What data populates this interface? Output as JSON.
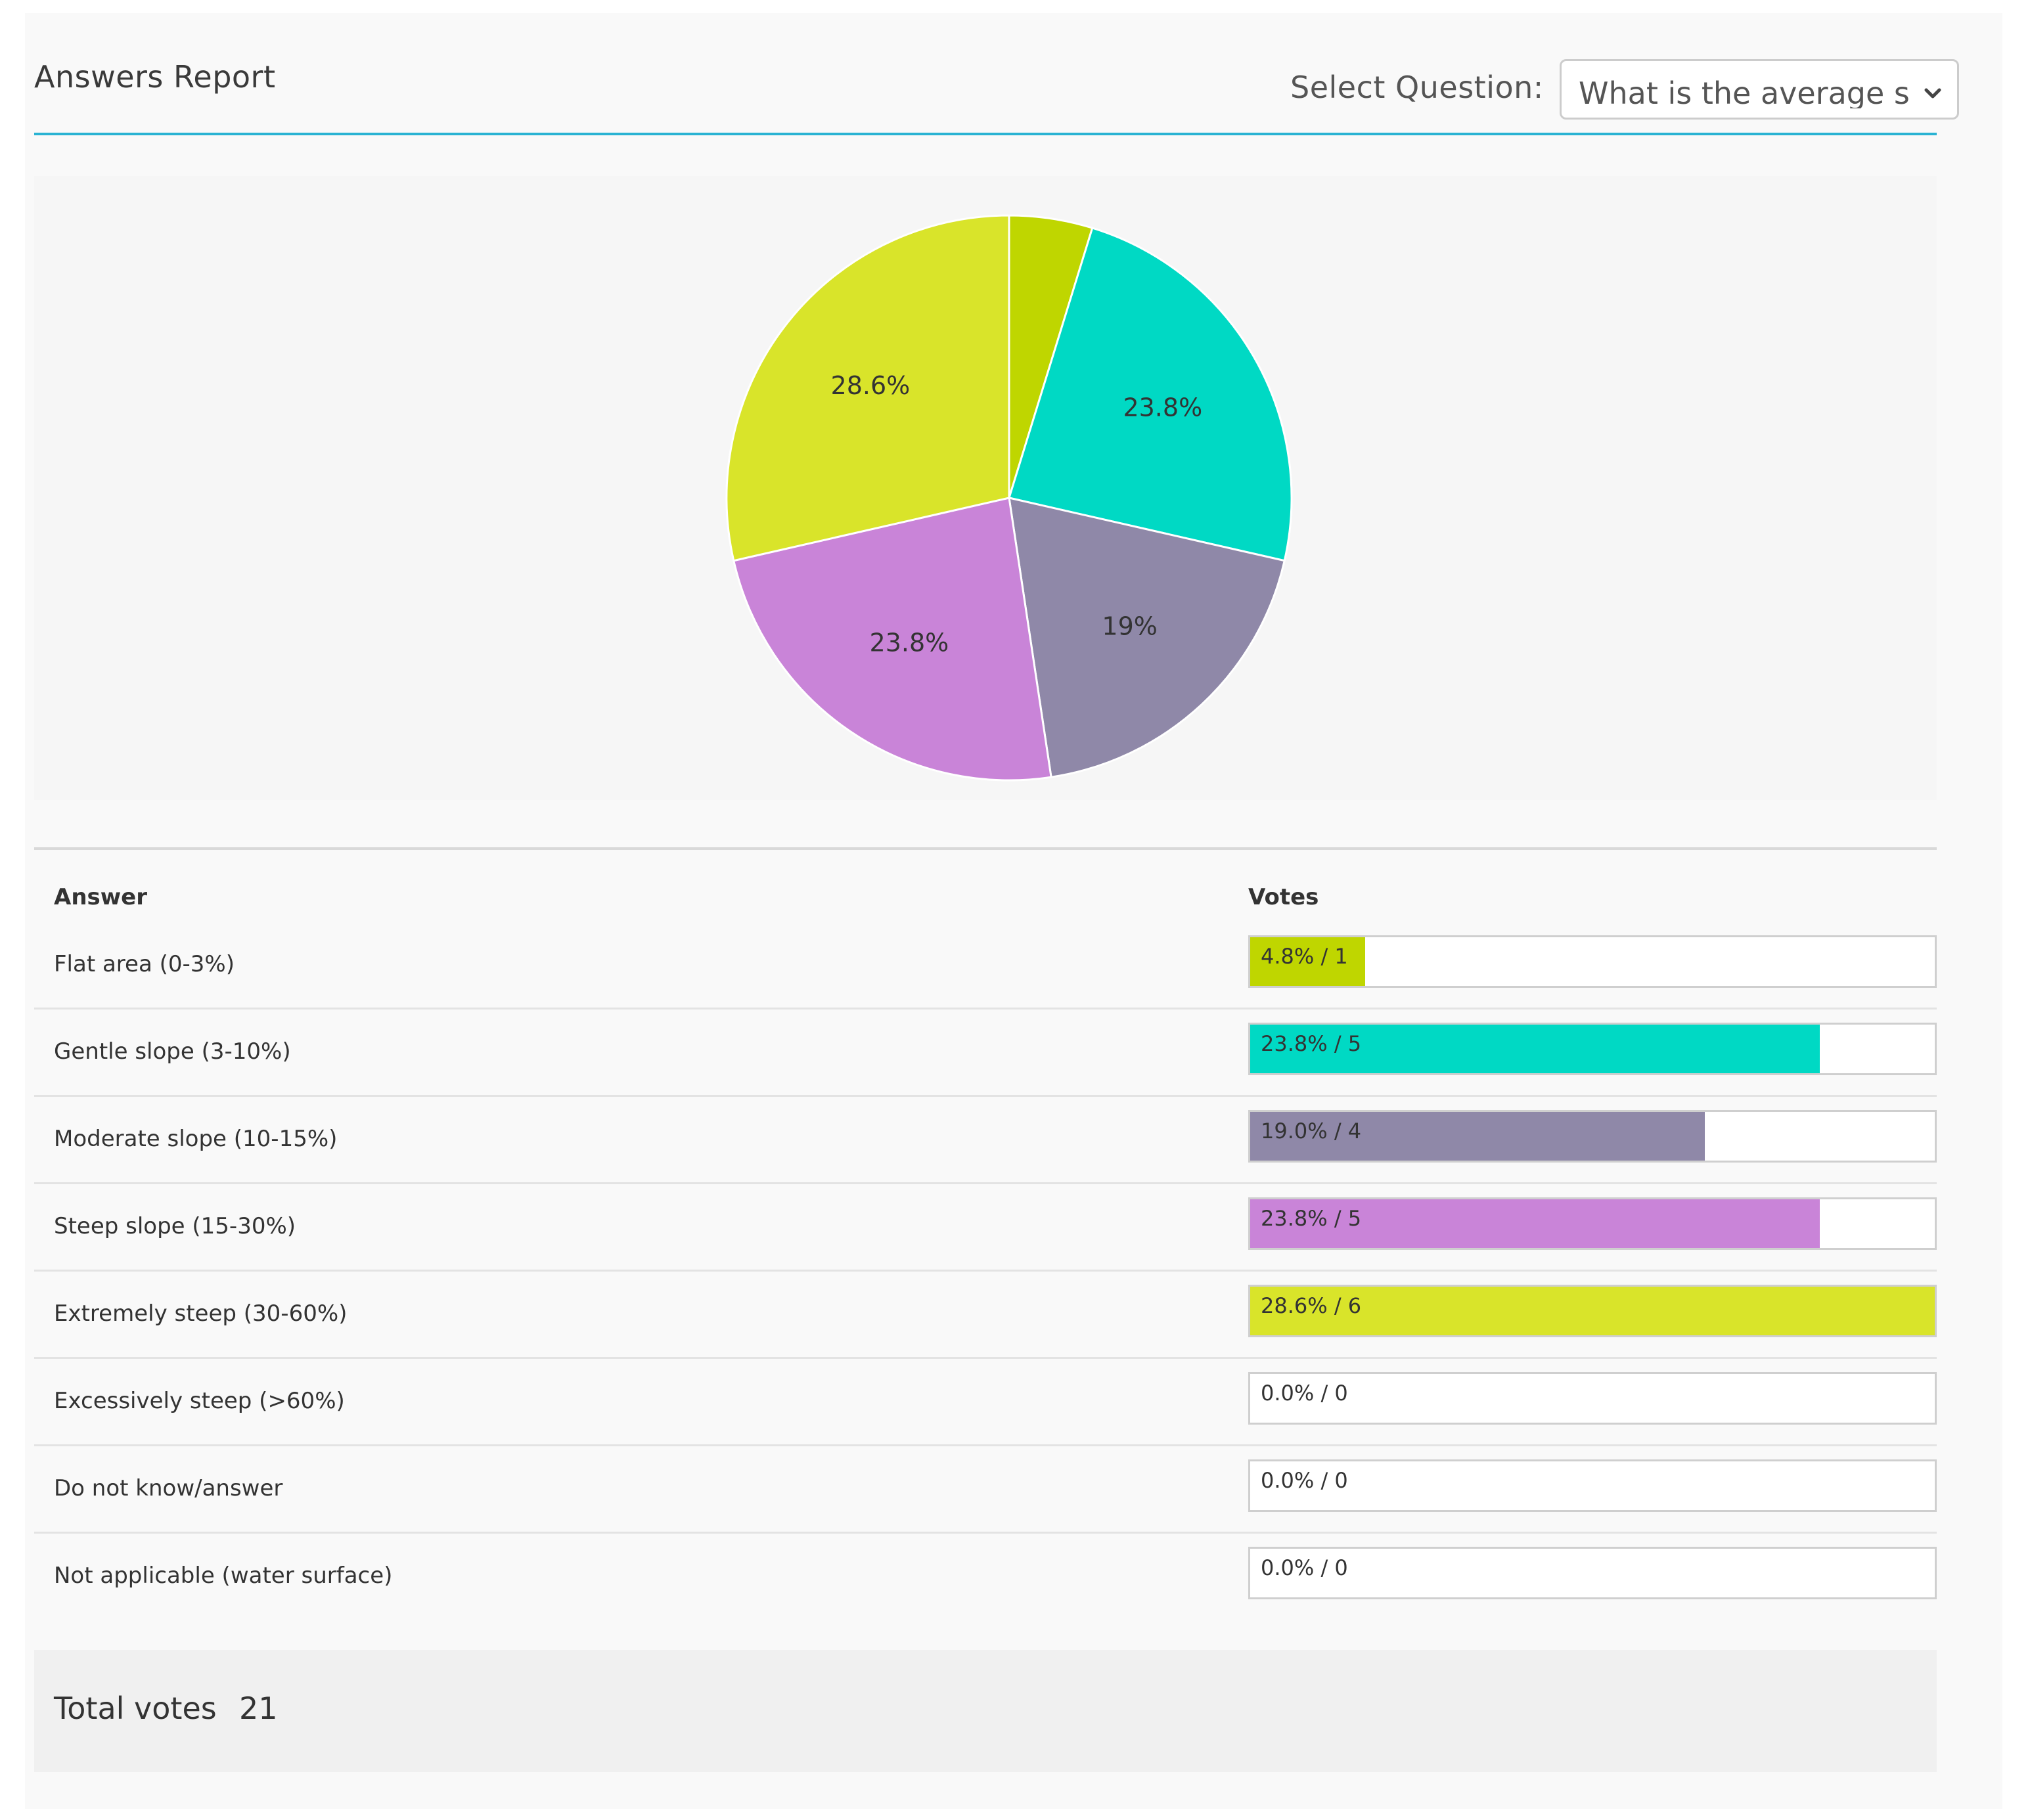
{
  "header": {
    "title": "Answers Report",
    "select_label": "Select Question:",
    "selected_question": "What is the average slǿ"
  },
  "table": {
    "col_answer": "Answer",
    "col_votes": "Votes",
    "rows": [
      {
        "label": "Flat area (0-3%)",
        "percent": 4.8,
        "votes": 1,
        "bar_text": "4.8% / 1",
        "color": "#bfd600"
      },
      {
        "label": "Gentle slope (3-10%)",
        "percent": 23.8,
        "votes": 5,
        "bar_text": "23.8% / 5",
        "color": "#00d9c4"
      },
      {
        "label": "Moderate slope (10-15%)",
        "percent": 19.0,
        "votes": 4,
        "bar_text": "19.0% / 4",
        "color": "#8f88a8"
      },
      {
        "label": "Steep slope (15-30%)",
        "percent": 23.8,
        "votes": 5,
        "bar_text": "23.8% / 5",
        "color": "#c984d8"
      },
      {
        "label": "Extremely steep (30-60%)",
        "percent": 28.6,
        "votes": 6,
        "bar_text": "28.6% / 6",
        "color": "#d9e42a"
      },
      {
        "label": "Excessively steep (>60%)",
        "percent": 0.0,
        "votes": 0,
        "bar_text": "0.0% / 0",
        "color": "#cccccc"
      },
      {
        "label": "Do not know/answer",
        "percent": 0.0,
        "votes": 0,
        "bar_text": "0.0% / 0",
        "color": "#cccccc"
      },
      {
        "label": "Not applicable (water surface)",
        "percent": 0.0,
        "votes": 0,
        "bar_text": "0.0% / 0",
        "color": "#cccccc"
      }
    ]
  },
  "footer": {
    "total_label": "Total votes",
    "total_value": "21"
  },
  "chart_data": {
    "type": "pie",
    "categories": [
      "Flat area (0-3%)",
      "Gentle slope (3-10%)",
      "Moderate slope (10-15%)",
      "Steep slope (15-30%)",
      "Extremely steep (30-60%)"
    ],
    "values": [
      1,
      5,
      4,
      5,
      6
    ],
    "slice_labels": [
      "",
      "23.8%",
      "19%",
      "23.8%",
      "28.6%"
    ],
    "colors": [
      "#bfd600",
      "#00d9c4",
      "#8f88a8",
      "#c984d8",
      "#d9e42a"
    ]
  },
  "icons": {
    "dropdown": "chevron-down-icon"
  }
}
